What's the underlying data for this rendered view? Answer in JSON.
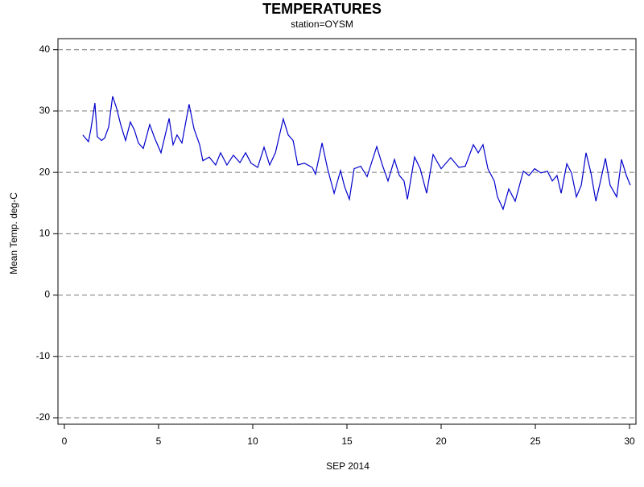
{
  "chart_data": {
    "type": "line",
    "title": "TEMPERATURES",
    "subtitle": "station=OYSM",
    "x_label": "SEP 2014",
    "y_label": "Mean Temp. deg-C",
    "xlim": [
      -0.34,
      30.34
    ],
    "ylim": [
      -21.05,
      41.8
    ],
    "xticks": [
      0,
      5,
      10,
      15,
      20,
      25,
      30
    ],
    "yticks": [
      -20,
      -10,
      0,
      10,
      20,
      30,
      40
    ],
    "grid": true,
    "x": [
      0.98,
      1.28,
      1.41,
      1.62,
      1.75,
      1.97,
      2.14,
      2.35,
      2.56,
      2.78,
      2.99,
      3.25,
      3.5,
      3.72,
      3.93,
      4.19,
      4.53,
      4.79,
      5.13,
      5.56,
      5.77,
      5.98,
      6.24,
      6.62,
      6.88,
      7.18,
      7.35,
      7.69,
      8.03,
      8.29,
      8.63,
      8.97,
      9.32,
      9.62,
      9.91,
      10.26,
      10.6,
      10.9,
      11.2,
      11.62,
      11.88,
      12.14,
      12.39,
      12.74,
      13.16,
      13.33,
      13.68,
      13.97,
      14.32,
      14.66,
      14.87,
      15.13,
      15.38,
      15.73,
      16.07,
      16.58,
      16.88,
      17.18,
      17.52,
      17.78,
      18.03,
      18.21,
      18.59,
      18.89,
      19.23,
      19.57,
      20.0,
      20.51,
      20.94,
      21.28,
      21.71,
      21.97,
      22.22,
      22.48,
      22.82,
      22.99,
      23.29,
      23.59,
      23.93,
      24.36,
      24.66,
      24.96,
      25.3,
      25.64,
      25.9,
      26.15,
      26.37,
      26.67,
      26.92,
      27.18,
      27.44,
      27.69,
      27.95,
      28.21,
      28.46,
      28.72,
      28.97,
      29.32,
      29.57,
      29.83,
      30.04
    ],
    "series": [
      {
        "name": "Mean Temp.",
        "color": "#0000cc",
        "values": [
          26.1,
          25.0,
          27.1,
          31.3,
          25.8,
          25.2,
          25.6,
          27.4,
          32.4,
          30.4,
          27.8,
          25.2,
          28.2,
          26.9,
          24.8,
          23.9,
          27.8,
          25.6,
          23.2,
          28.8,
          24.5,
          26.1,
          24.8,
          31.1,
          27.1,
          24.5,
          21.9,
          22.5,
          21.2,
          23.2,
          21.2,
          22.8,
          21.6,
          23.2,
          21.5,
          20.8,
          24.1,
          21.2,
          23.2,
          28.7,
          26.1,
          25.2,
          21.2,
          21.5,
          20.8,
          19.7,
          24.8,
          20.6,
          16.6,
          20.3,
          17.7,
          15.6,
          20.6,
          21.0,
          19.3,
          24.2,
          21.2,
          18.6,
          22.1,
          19.5,
          18.6,
          15.6,
          22.5,
          20.6,
          16.6,
          22.9,
          20.6,
          22.4,
          20.8,
          21.0,
          24.5,
          23.2,
          24.5,
          20.6,
          18.6,
          16.0,
          14.0,
          17.3,
          15.3,
          20.2,
          19.5,
          20.6,
          19.9,
          20.2,
          18.6,
          19.5,
          16.6,
          21.4,
          19.9,
          16.0,
          17.9,
          23.2,
          19.9,
          15.3,
          18.6,
          22.3,
          17.9,
          16.0,
          22.1,
          19.5,
          17.9
        ]
      }
    ]
  }
}
